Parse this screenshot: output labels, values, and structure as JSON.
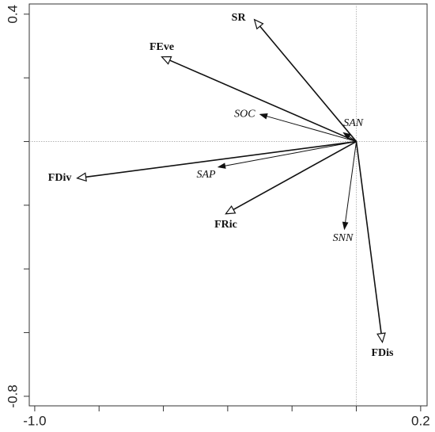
{
  "chart_data": {
    "type": "biplot",
    "xlim": [
      -1.017,
      0.22
    ],
    "ylim": [
      -0.83,
      0.432
    ],
    "xticks": [
      {
        "value": -1.0,
        "label": "-1.0"
      },
      0.2
    ],
    "yticks": [
      0.4,
      -0.8
    ],
    "xminor_ticks": [
      -0.8,
      -0.6,
      -0.4,
      -0.2,
      0
    ],
    "yminor_ticks": [
      0.2,
      0,
      -0.2,
      -0.4,
      -0.6
    ],
    "response_vectors": {
      "font_style": "bold",
      "head": "open",
      "labels": [
        "SR",
        "FEve",
        "FDiv",
        "FRic",
        "FDis"
      ],
      "x": [
        -0.317,
        -0.605,
        -0.868,
        -0.406,
        0.081
      ],
      "y": [
        0.383,
        0.266,
        -0.115,
        -0.227,
        -0.63
      ]
    },
    "explanatory_vectors": {
      "font_style": "italic",
      "head": "filled",
      "labels": [
        "SOC",
        "SAN",
        "SAP",
        "SNN"
      ],
      "x": [
        -0.298,
        -0.039,
        -0.428,
        -0.037
      ],
      "y": [
        0.085,
        0.027,
        -0.08,
        -0.274
      ]
    }
  }
}
